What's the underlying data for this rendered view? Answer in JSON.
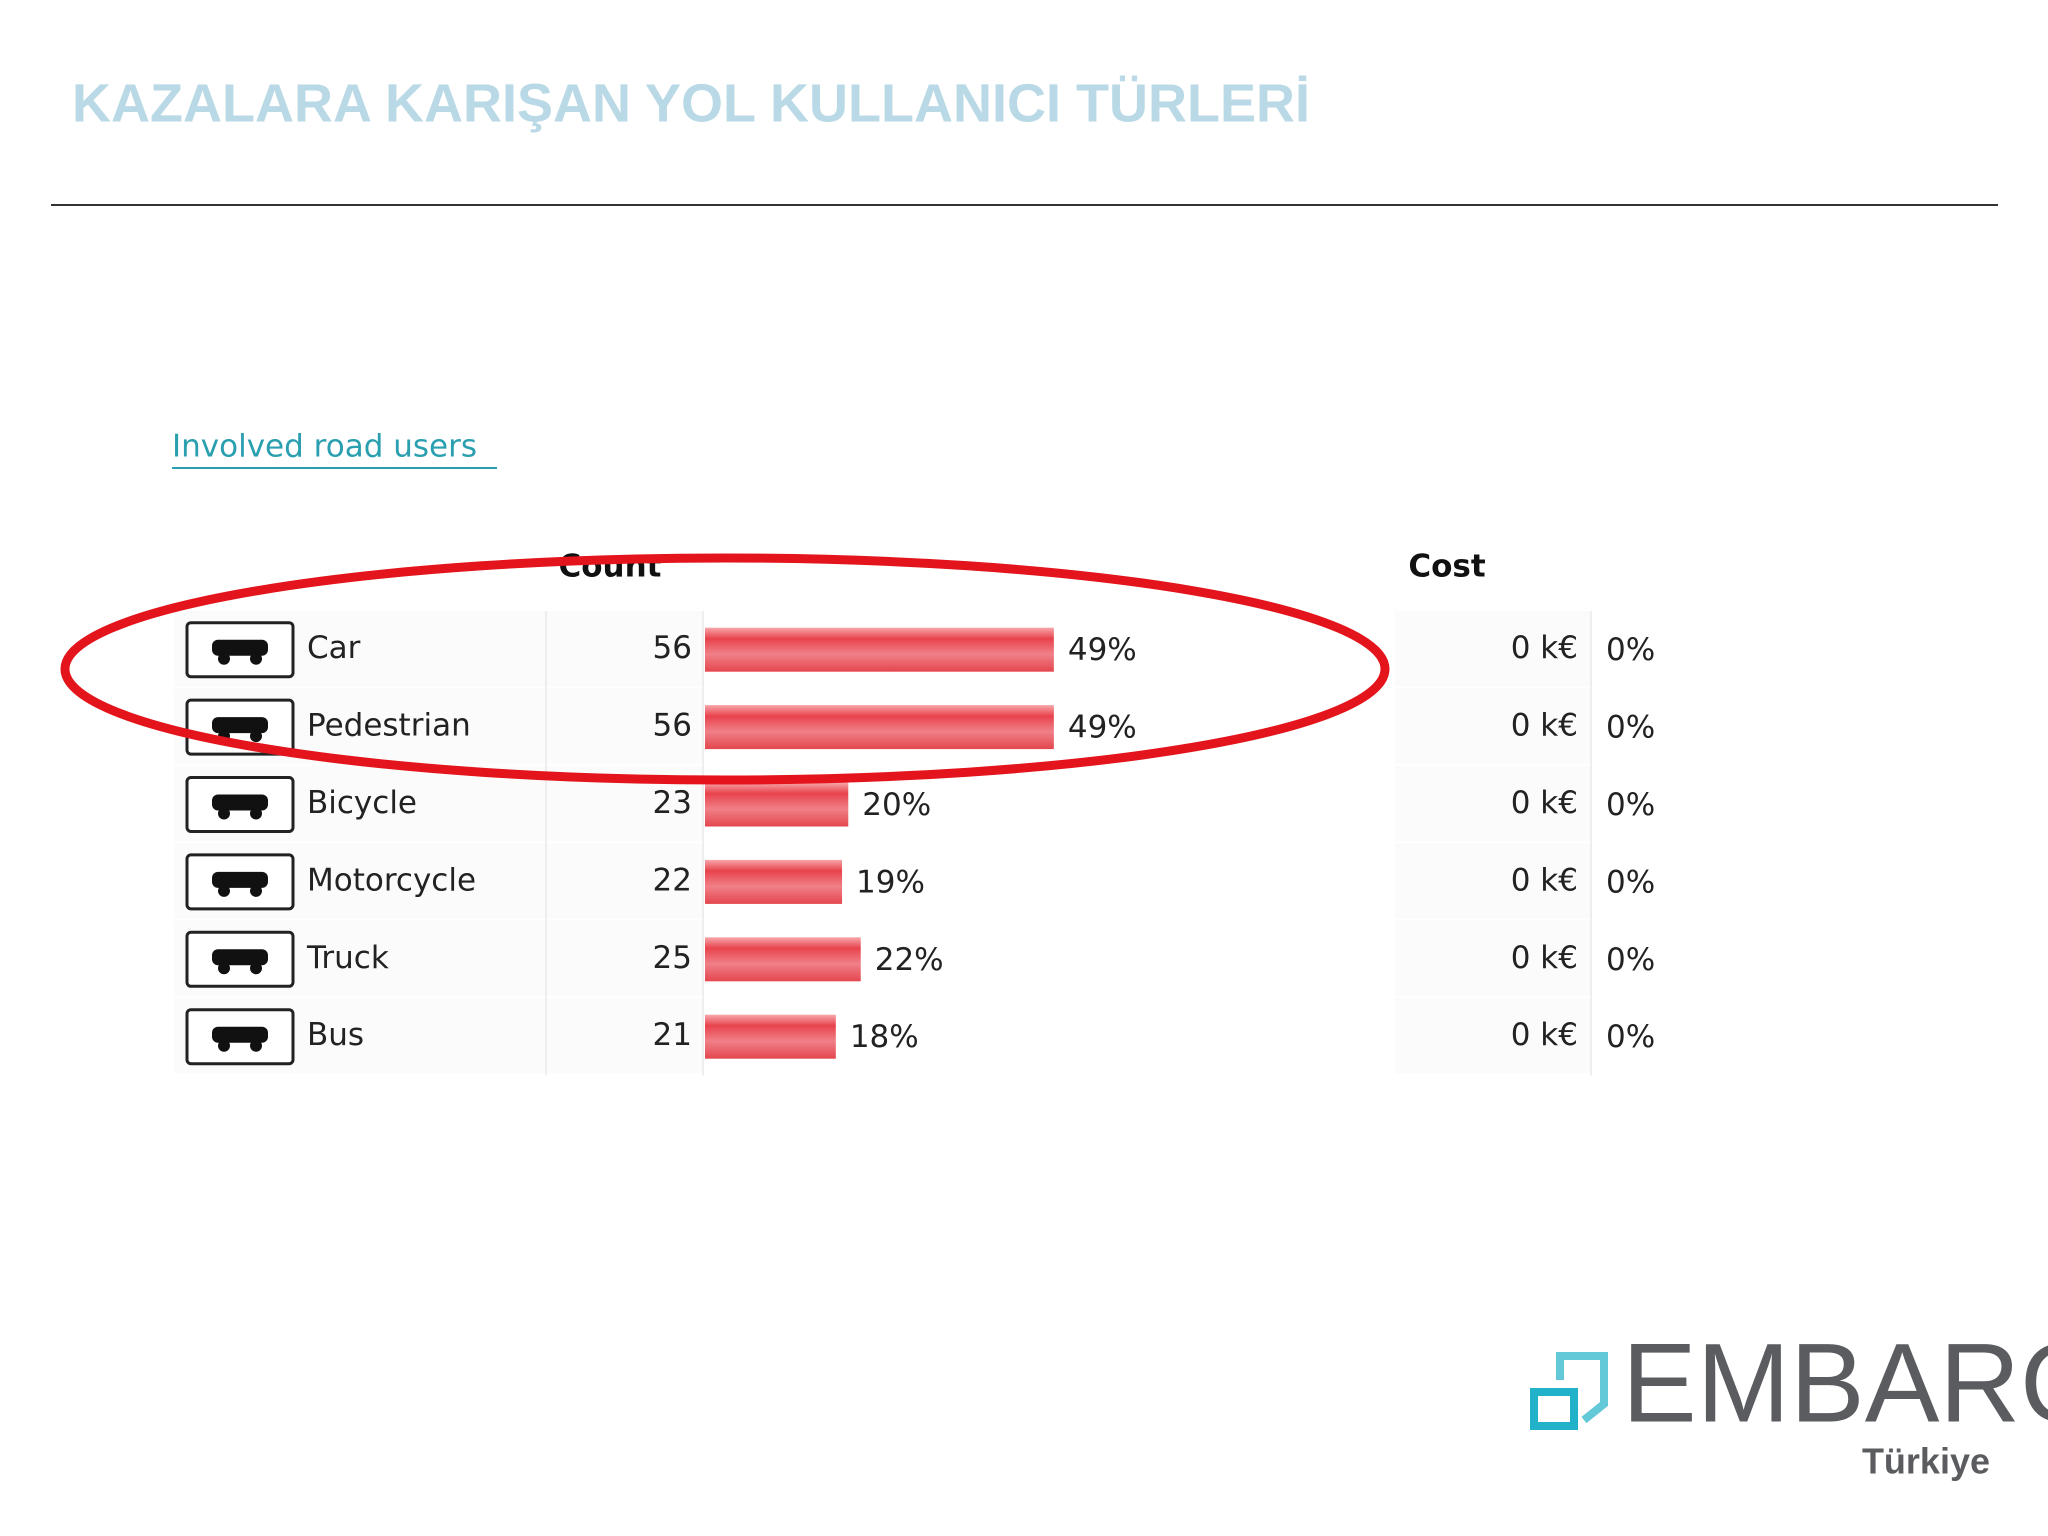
{
  "header": {
    "title": "KAZALARA KARIŞAN YOL KULLANICI TÜRLERİ"
  },
  "link": "Involved road users",
  "table": {
    "headers": [
      "Count",
      "Cost"
    ],
    "rows": [
      {
        "name": "Car",
        "count": 56,
        "share": "49%",
        "cost": "0 k€",
        "cost_share": "0%"
      },
      {
        "name": "Pedestrian",
        "count": 56,
        "share": "49%",
        "cost": "0 k€",
        "cost_share": "0%"
      },
      {
        "name": "Bicycle",
        "count": 23,
        "share": "20%",
        "cost": "0 k€",
        "cost_share": "0%"
      },
      {
        "name": "Motorcycle",
        "count": 22,
        "share": "19%",
        "cost": "0 k€",
        "cost_share": "0%"
      },
      {
        "name": "Truck",
        "count": 25,
        "share": "22%",
        "cost": "0 k€",
        "cost_share": "0%"
      },
      {
        "name": "Bus",
        "count": 21,
        "share": "18%",
        "cost": "0 k€",
        "cost_share": "0%"
      }
    ]
  },
  "logo": {
    "name": "EMBARQ",
    "sub": "Türkiye"
  }
}
